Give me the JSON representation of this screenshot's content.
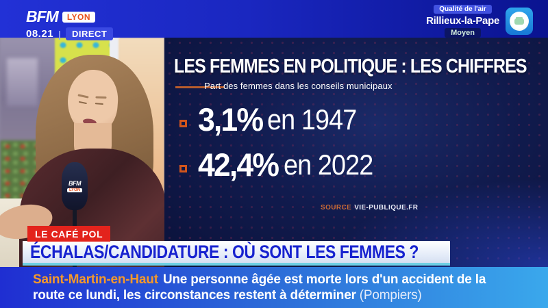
{
  "topbar": {
    "brand": "BFM",
    "brand_region": "LYON",
    "time": "08.21",
    "divider": "|",
    "live_label": "DIRECT",
    "air_quality": {
      "label": "Qualité de l'air",
      "city": "Rillieux-la-Pape",
      "level": "Moyen"
    }
  },
  "studio": {
    "mic_brand": "BFM",
    "mic_region": "LYON"
  },
  "infographic": {
    "title": "LES FEMMES EN POLITIQUE : LES CHIFFRES",
    "subtitle": "Part des femmes dans les conseils municipaux",
    "source_label": "SOURCE",
    "source_name": "VIE-PUBLIQUE.FR"
  },
  "chart_data": {
    "type": "table",
    "title": "LES FEMMES EN POLITIQUE : LES CHIFFRES",
    "subtitle": "Part des femmes dans les conseils municipaux",
    "categories": [
      "1947",
      "2022"
    ],
    "values": [
      3.1,
      42.4
    ],
    "unit": "%",
    "rows": [
      {
        "value_label": "3,1%",
        "year_label": "en 1947",
        "value": 3.1,
        "year": 1947
      },
      {
        "value_label": "42,4%",
        "year_label": "en 2022",
        "value": 42.4,
        "year": 2022
      }
    ],
    "source": "VIE-PUBLIQUE.FR"
  },
  "banner": {
    "kicker": "LE CAFÉ POL",
    "headline": "ÉCHALAS/CANDIDATURE : OÙ SONT LES FEMMES ?"
  },
  "ticker": {
    "location": "Saint-Martin-en-Haut",
    "line1": "Une personne âgée est morte lors d'un accident de la",
    "line2": "route ce lundi, les circonstances restent à déterminer",
    "attribution": "(Pompiers)"
  },
  "colors": {
    "accent_orange": "#d2551c",
    "bfm_blue": "#1f2ed2",
    "panel_navy": "#101a4a",
    "kicker_red": "#e3231c",
    "headline_blue": "#1722cf",
    "ticker_highlight": "#f5992b",
    "cyan_rule": "#6fd0e4"
  }
}
